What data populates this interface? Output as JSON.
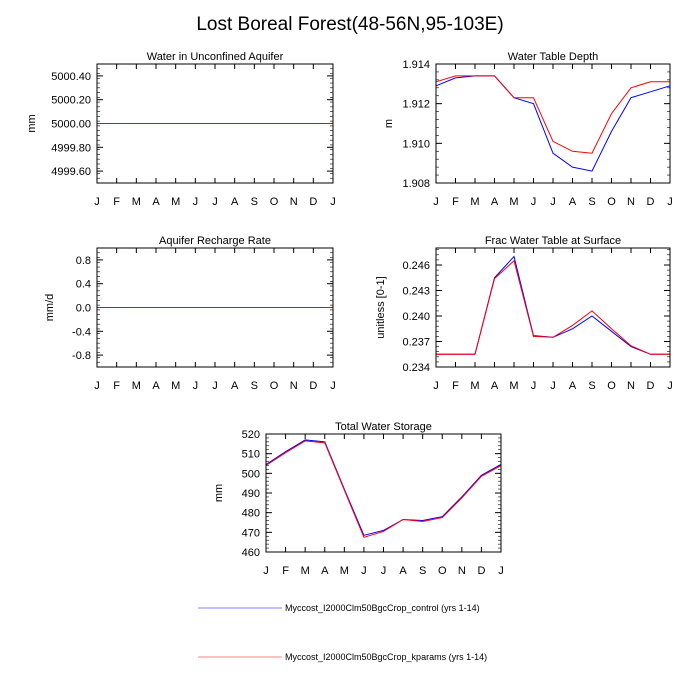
{
  "title": "Lost Boreal Forest(48-56N,95-103E)",
  "colors": {
    "control": "#0000ff",
    "kparams": "#ff0000",
    "axis": "#000000"
  },
  "legend": [
    {
      "label": "Myccost_I2000Clm50BgcCrop_control (yrs 1-14)",
      "color": "#8080ff"
    },
    {
      "label": "Myccost_I2000Clm50BgcCrop_kparams (yrs 1-14)",
      "color": "#ff8080"
    }
  ],
  "chart_data": [
    {
      "type": "line",
      "title": "Water in Unconfined Aquifer",
      "xlabel": "",
      "ylabel": "mm",
      "categories": [
        "J",
        "F",
        "M",
        "A",
        "M",
        "J",
        "J",
        "A",
        "S",
        "O",
        "N",
        "D",
        "J"
      ],
      "ylim": [
        4999.5,
        5000.5
      ],
      "yticks": [
        4999.6,
        4999.8,
        5000.0,
        5000.2,
        5000.4
      ],
      "ytick_labels": [
        "4999.60",
        "4999.80",
        "5000.00",
        "5000.20",
        "5000.40"
      ],
      "series": [
        {
          "name": "control",
          "values": [
            5000,
            5000,
            5000,
            5000,
            5000,
            5000,
            5000,
            5000,
            5000,
            5000,
            5000,
            5000,
            5000
          ]
        },
        {
          "name": "kparams",
          "values": [
            5000,
            5000,
            5000,
            5000,
            5000,
            5000,
            5000,
            5000,
            5000,
            5000,
            5000,
            5000,
            5000
          ]
        }
      ]
    },
    {
      "type": "line",
      "title": "Water Table Depth",
      "xlabel": "",
      "ylabel": "m",
      "categories": [
        "J",
        "F",
        "M",
        "A",
        "M",
        "J",
        "J",
        "A",
        "S",
        "O",
        "N",
        "D",
        "J"
      ],
      "ylim": [
        1.908,
        1.914
      ],
      "yticks": [
        1.908,
        1.91,
        1.912,
        1.914
      ],
      "ytick_labels": [
        "1.908",
        "1.910",
        "1.912",
        "1.914"
      ],
      "series": [
        {
          "name": "control",
          "values": [
            1.9129,
            1.9133,
            1.9134,
            1.9134,
            1.9123,
            1.912,
            1.9095,
            1.9088,
            1.9086,
            1.9106,
            1.9123,
            1.9126,
            1.9129
          ]
        },
        {
          "name": "kparams",
          "values": [
            1.9131,
            1.9134,
            1.9134,
            1.9134,
            1.9123,
            1.9123,
            1.9101,
            1.9096,
            1.9095,
            1.9115,
            1.9128,
            1.9131,
            1.9131
          ]
        }
      ]
    },
    {
      "type": "line",
      "title": "Aquifer Recharge Rate",
      "xlabel": "",
      "ylabel": "mm/d",
      "categories": [
        "J",
        "F",
        "M",
        "A",
        "M",
        "J",
        "J",
        "A",
        "S",
        "O",
        "N",
        "D",
        "J"
      ],
      "ylim": [
        -1,
        1
      ],
      "yticks": [
        -0.8,
        -0.4,
        0.0,
        0.4,
        0.8
      ],
      "ytick_labels": [
        "-0.8",
        "-0.4",
        "0.0",
        "0.4",
        "0.8"
      ],
      "series": [
        {
          "name": "control",
          "values": [
            0,
            0,
            0,
            0,
            0,
            0,
            0,
            0,
            0,
            0,
            0,
            0,
            0
          ]
        },
        {
          "name": "kparams",
          "values": [
            0,
            0,
            0,
            0,
            0,
            0,
            0,
            0,
            0,
            0,
            0,
            0,
            0
          ]
        }
      ]
    },
    {
      "type": "line",
      "title": "Frac Water Table at Surface",
      "xlabel": "",
      "ylabel": "unitless [0-1]",
      "categories": [
        "J",
        "F",
        "M",
        "A",
        "M",
        "J",
        "J",
        "A",
        "S",
        "O",
        "N",
        "D",
        "J"
      ],
      "ylim": [
        0.234,
        0.248
      ],
      "yticks": [
        0.234,
        0.237,
        0.24,
        0.243,
        0.246
      ],
      "ytick_labels": [
        "0.234",
        "0.237",
        "0.240",
        "0.243",
        "0.246"
      ],
      "series": [
        {
          "name": "control",
          "values": [
            0.2355,
            0.2355,
            0.2355,
            0.2445,
            0.247,
            0.2377,
            0.2375,
            0.2385,
            0.24,
            0.2382,
            0.2364,
            0.2355,
            0.2355
          ]
        },
        {
          "name": "kparams",
          "values": [
            0.2355,
            0.2355,
            0.2355,
            0.2444,
            0.2465,
            0.2376,
            0.2375,
            0.2389,
            0.2406,
            0.2385,
            0.2365,
            0.2355,
            0.2355
          ]
        }
      ]
    },
    {
      "type": "line",
      "title": "Total Water Storage",
      "xlabel": "",
      "ylabel": "mm",
      "categories": [
        "J",
        "F",
        "M",
        "A",
        "M",
        "J",
        "J",
        "A",
        "S",
        "O",
        "N",
        "D",
        "J"
      ],
      "ylim": [
        460,
        520
      ],
      "yticks": [
        460,
        470,
        480,
        490,
        500,
        510,
        520
      ],
      "ytick_labels": [
        "460",
        "470",
        "480",
        "490",
        "500",
        "510",
        "520"
      ],
      "series": [
        {
          "name": "control",
          "values": [
            504.5,
            511,
            517,
            516,
            492,
            468.5,
            471,
            476.5,
            476,
            478,
            488,
            499,
            504.5
          ]
        },
        {
          "name": "kparams",
          "values": [
            504,
            510.5,
            516.5,
            515.5,
            491.5,
            467.5,
            470.5,
            476.5,
            475.5,
            477.5,
            487.5,
            498.5,
            504
          ]
        }
      ]
    }
  ]
}
